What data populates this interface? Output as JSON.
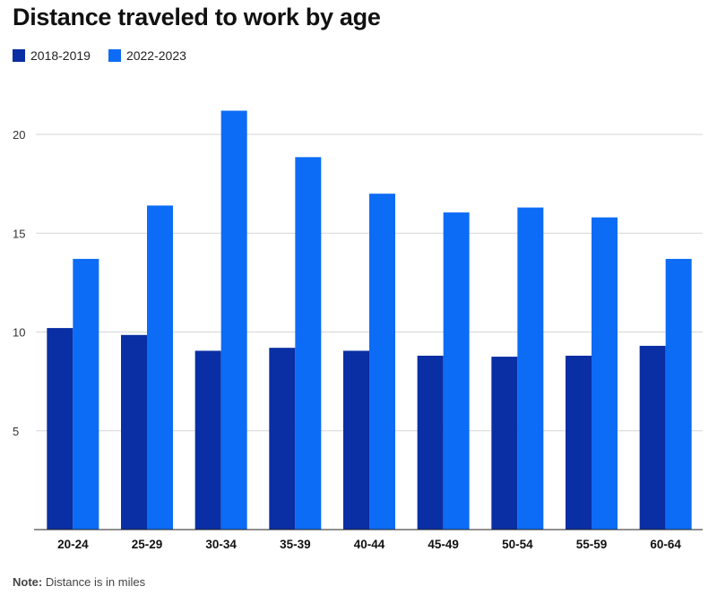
{
  "chart_data": {
    "type": "bar",
    "title": "Distance traveled to work by age",
    "categories": [
      "20-24",
      "25-29",
      "30-34",
      "35-39",
      "40-44",
      "45-49",
      "50-54",
      "55-59",
      "60-64"
    ],
    "series": [
      {
        "name": "2018-2019",
        "color": "#0a2ea3",
        "values": [
          10.2,
          9.85,
          9.05,
          9.2,
          9.05,
          8.8,
          8.75,
          8.8,
          9.3
        ]
      },
      {
        "name": "2022-2023",
        "color": "#0d6cf5",
        "values": [
          13.7,
          16.4,
          21.2,
          18.85,
          17.0,
          16.05,
          16.3,
          15.8,
          13.7
        ]
      }
    ],
    "yticks": [
      5,
      10,
      15,
      20
    ],
    "ylim": [
      0,
      22
    ],
    "xlabel": "",
    "ylabel": "",
    "grid": true,
    "legend": "top-left"
  },
  "note": {
    "label": "Note:",
    "text": " Distance is in miles"
  }
}
